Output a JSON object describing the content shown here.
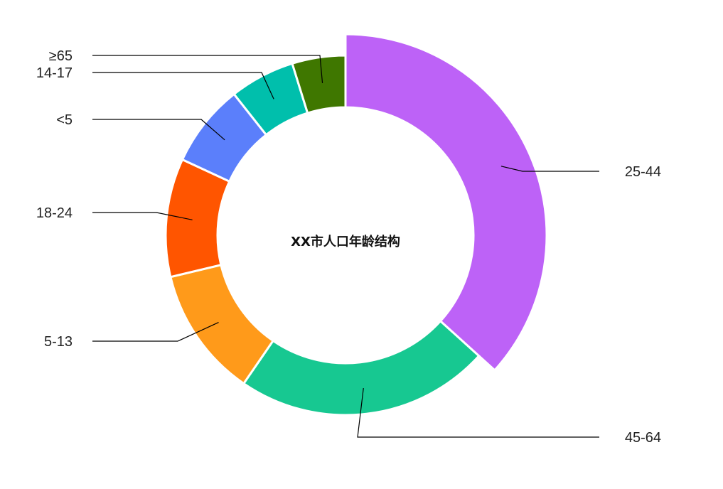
{
  "chart_data": {
    "type": "pie",
    "title": "XX市人口年龄结构",
    "categories": [
      "25-44",
      "45-64",
      "5-13",
      "18-24",
      "<5",
      "14-17",
      "≥65"
    ],
    "values": [
      34.5,
      21.5,
      11.0,
      10.0,
      7.0,
      5.5,
      4.5
    ],
    "colors": [
      "#BD62F7",
      "#17C891",
      "#FF9A1A",
      "#FF5500",
      "#5B7FFB",
      "#00BFAC",
      "#3F7700"
    ],
    "first_slice_emphasized": true,
    "legend": "none"
  }
}
